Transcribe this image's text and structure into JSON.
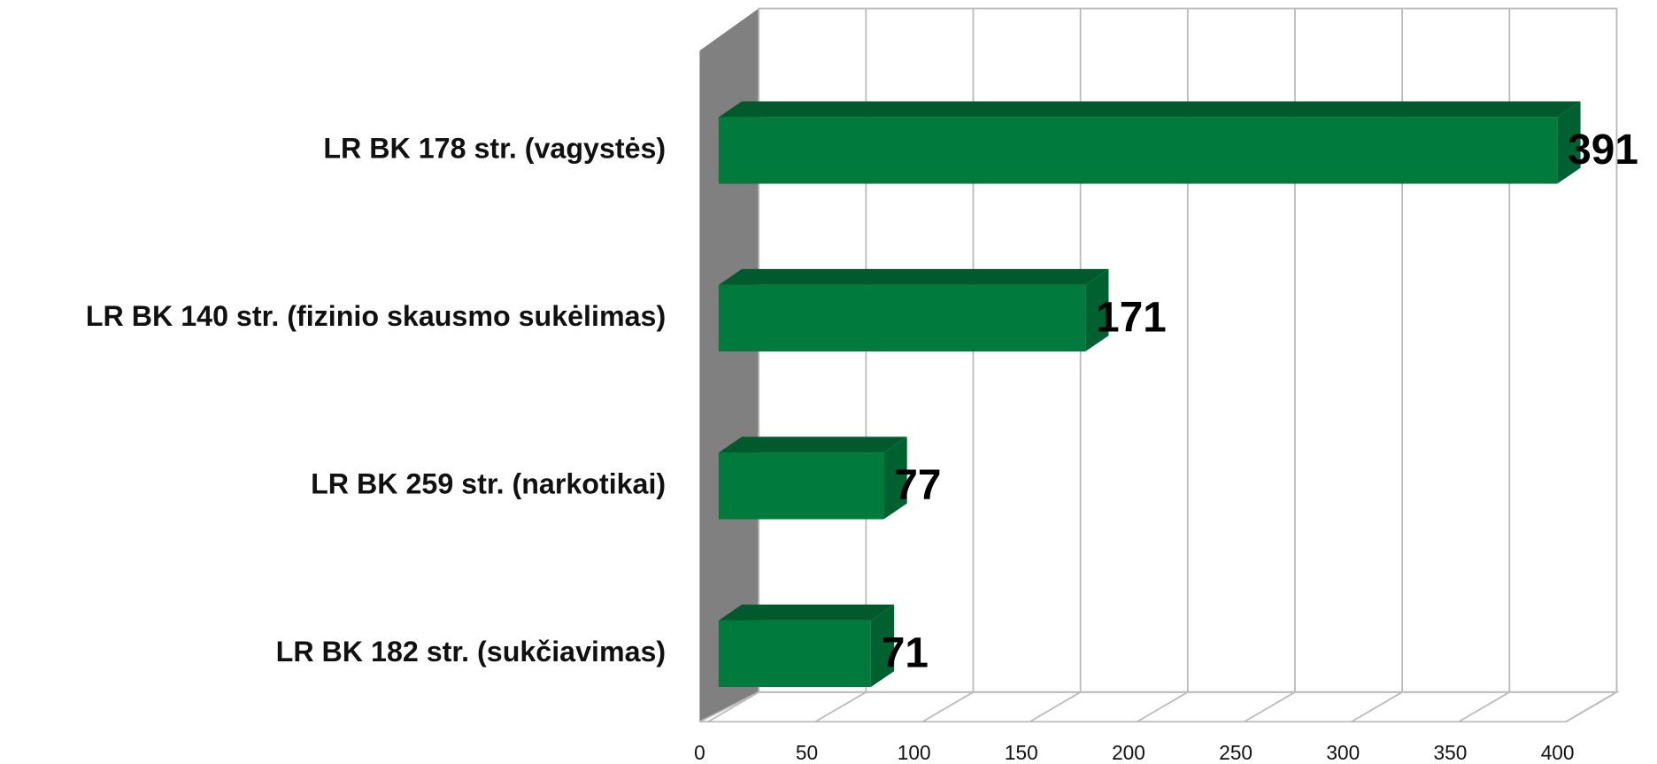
{
  "chart_data": {
    "type": "bar",
    "orientation": "horizontal",
    "categories": [
      "LR BK 178 str. (vagystės)",
      "LR BK 140 str. (fizinio skausmo sukėlimas)",
      "LR BK 259 str. (narkotikai)",
      "LR BK 182 str. (sukčiavimas)"
    ],
    "values": [
      391,
      171,
      77,
      71
    ],
    "color": "#007a3d",
    "xlim": [
      0,
      400
    ],
    "xticks": [
      0,
      50,
      100,
      150,
      200,
      250,
      300,
      350,
      400
    ],
    "grid": true
  }
}
